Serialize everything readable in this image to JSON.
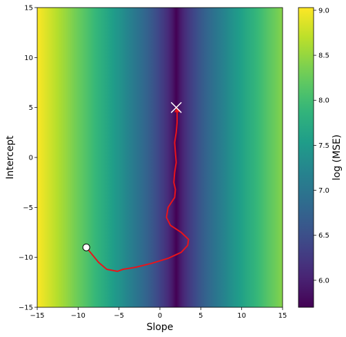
{
  "chart_data": {
    "type": "heatmap",
    "title": "",
    "xlabel": "Slope",
    "ylabel": "Intercept",
    "xlim": [
      -15,
      15
    ],
    "ylim": [
      -15,
      15
    ],
    "x_ticks": [
      -15,
      -10,
      -5,
      0,
      5,
      10,
      15
    ],
    "y_ticks": [
      -15,
      -10,
      -5,
      0,
      5,
      10,
      15
    ],
    "colormap": "viridis",
    "colorbar": {
      "label": "log (MSE)",
      "range": [
        5.7,
        9.03
      ],
      "ticks": [
        6.0,
        6.5,
        7.0,
        7.5,
        8.0,
        8.5,
        9.0
      ]
    },
    "surface": {
      "minimum_slope": 2.0,
      "log_mse_at_minimum": 5.7,
      "log_mse_at_edge": 9.03
    },
    "path": {
      "color": "#e8141b",
      "points": [
        [
          -9.0,
          -9.0
        ],
        [
          -7.5,
          -10.5
        ],
        [
          -6.5,
          -11.2
        ],
        [
          -5.2,
          -11.4
        ],
        [
          -4.5,
          -11.2
        ],
        [
          -3.0,
          -11.0
        ],
        [
          -1.0,
          -10.6
        ],
        [
          1.0,
          -10.1
        ],
        [
          2.6,
          -9.5
        ],
        [
          3.4,
          -8.8
        ],
        [
          3.5,
          -8.2
        ],
        [
          2.6,
          -7.5
        ],
        [
          1.3,
          -6.8
        ],
        [
          0.8,
          -6.0
        ],
        [
          1.0,
          -5.0
        ],
        [
          1.8,
          -4.0
        ],
        [
          1.9,
          -3.2
        ],
        [
          1.7,
          -2.5
        ],
        [
          1.8,
          -1.5
        ],
        [
          2.0,
          -0.5
        ],
        [
          1.9,
          0.5
        ],
        [
          1.8,
          1.5
        ],
        [
          2.0,
          2.5
        ],
        [
          2.1,
          3.5
        ],
        [
          2.1,
          4.2
        ],
        [
          2.1,
          4.8
        ]
      ]
    },
    "start_marker": {
      "x": -9.0,
      "y": -9.0
    },
    "end_marker": {
      "x": 2.0,
      "y": 5.0
    }
  }
}
